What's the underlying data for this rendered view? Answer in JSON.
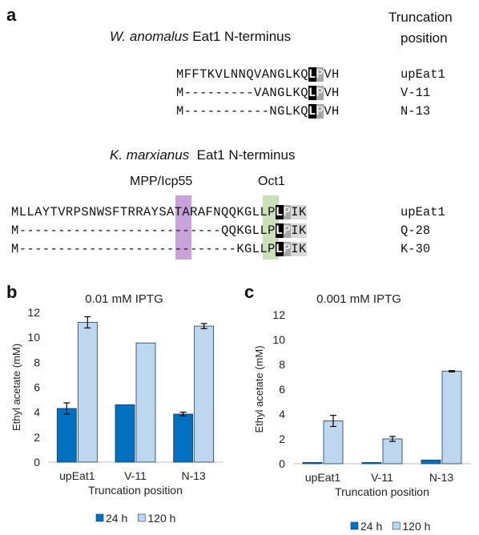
{
  "panel_a": {
    "letter": "a",
    "truncation_header_line1": "Truncation",
    "truncation_header_line2": "position",
    "wa_species": "W. anomalus",
    "wa_rest": " Eat1 N-terminus",
    "wa_rows": [
      {
        "pre": "MFFTKVLNNQVANGLKQ",
        "L": "L",
        "P": "P",
        "post": "VH",
        "pos": "upEat1"
      },
      {
        "pre": "M---------VANGLKQ",
        "L": "L",
        "P": "P",
        "post": "VH",
        "pos": "V-11"
      },
      {
        "pre": "M-----------NGLKQ",
        "L": "L",
        "P": "P",
        "post": "VH",
        "pos": "N-13"
      }
    ],
    "km_species": "K. marxianus",
    "km_rest": "  Eat1 N-terminus",
    "site_mpp": "MPP/Icp55",
    "site_oct": "Oct1",
    "km_rows": [
      {
        "pre": "MLLAYTVRPSNWSFTRRAYSATARAFNQQKGLLP",
        "L": "L",
        "P": "P",
        "post": "IK",
        "pos": "upEat1"
      },
      {
        "pre": "M--------------------------QQKGLLP",
        "L": "L",
        "P": "P",
        "post": "IK",
        "pos": "Q-28"
      },
      {
        "pre": "M----------------------------KGLLP",
        "L": "L",
        "P": "P",
        "post": "IK",
        "pos": "K-30"
      }
    ],
    "colors": {
      "purple": "#c7a3d9",
      "green": "#c9e0b8",
      "black": "#000000",
      "gray": "#a6a6a6",
      "lightgray": "#d9d9d9"
    }
  },
  "chart_data": [
    {
      "panel": "b",
      "type": "bar",
      "title": "0.01 mM IPTG",
      "xlabel": "Truncation position",
      "ylabel": "Ethyl acetate (mM)",
      "categories": [
        "upEat1",
        "V-11",
        "N-13"
      ],
      "ylim": [
        0,
        12
      ],
      "yticks": [
        0,
        2,
        4,
        6,
        8,
        10,
        12
      ],
      "series": [
        {
          "name": "24 h",
          "color": "#0070c0",
          "values": [
            4.3,
            4.6,
            3.85
          ],
          "errors": [
            0.45,
            0,
            0.15
          ]
        },
        {
          "name": "120 h",
          "color": "#bdd7ee",
          "values": [
            11.2,
            9.55,
            10.9
          ],
          "errors": [
            0.45,
            0,
            0.2
          ]
        }
      ],
      "legend": "bottom"
    },
    {
      "panel": "c",
      "type": "bar",
      "title": "0.001 mM IPTG",
      "xlabel": "Truncation position",
      "ylabel": "Ethyl acetate (mM)",
      "categories": [
        "upEat1",
        "V-11",
        "N-13"
      ],
      "ylim": [
        0,
        12
      ],
      "yticks": [
        0,
        2,
        4,
        6,
        8,
        10,
        12
      ],
      "series": [
        {
          "name": "24 h",
          "color": "#0070c0",
          "values": [
            0.1,
            0.1,
            0.3
          ],
          "errors": [
            0,
            0,
            0
          ]
        },
        {
          "name": "120 h",
          "color": "#bdd7ee",
          "values": [
            3.45,
            2.0,
            7.45
          ],
          "errors": [
            0.45,
            0.2,
            0.05
          ]
        }
      ],
      "legend": "bottom"
    }
  ]
}
